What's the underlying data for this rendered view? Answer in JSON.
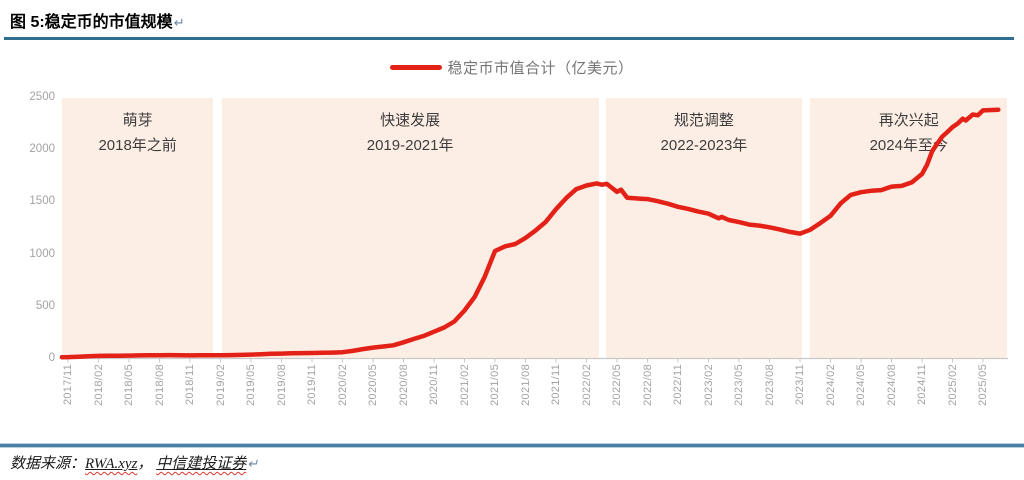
{
  "header": {
    "title": "图 5:稳定币的市值规模",
    "return_mark": "↵"
  },
  "legend": {
    "label": "稳定币市值合计（亿美元）"
  },
  "colors": {
    "line": "#e32117",
    "band": "#fdeee5",
    "divider_top": "#2f6e8e",
    "divider_bottom": "#4a80a4",
    "axis": "#c9c9c9",
    "axis_text": "#a3a3a3",
    "phase_text": "#3d3d3d"
  },
  "source": {
    "label": "数据来源：",
    "link1": "RWA.xyz",
    "separator": "， ",
    "link2": "中信建投证券",
    "return_mark": "↵"
  },
  "chart_data": {
    "type": "line",
    "title": "稳定币的市值规模",
    "legend_entries": [
      "稳定币市值合计（亿美元）"
    ],
    "ylabel": "亿美元",
    "ylim": [
      0,
      2500
    ],
    "y_ticks": [
      0,
      500,
      1000,
      1500,
      2000,
      2500
    ],
    "grid": false,
    "x_unit": "months since 2017/11",
    "x_tick_step_months": 3,
    "x_tick_labels": [
      "2017/11",
      "2018/02",
      "2018/05",
      "2018/08",
      "2018/11",
      "2019/02",
      "2019/05",
      "2019/08",
      "2019/11",
      "2020/02",
      "2020/05",
      "2020/08",
      "2020/11",
      "2021/02",
      "2021/05",
      "2021/08",
      "2021/11",
      "2022/02",
      "2022/05",
      "2022/08",
      "2022/11",
      "2023/02",
      "2023/05",
      "2023/08",
      "2023/11",
      "2024/02",
      "2024/05",
      "2024/08",
      "2024/11",
      "2025/02",
      "2025/05"
    ],
    "phases": [
      {
        "label": "萌芽",
        "period": "2018年之前",
        "m_start": -0.6,
        "m_end": 14.3
      },
      {
        "label": "快速发展",
        "period": "2019-2021年",
        "m_start": 15.1,
        "m_end": 52.2
      },
      {
        "label": "规范调整",
        "period": "2022-2023年",
        "m_start": 52.9,
        "m_end": 72.2
      },
      {
        "label": "再次兴起",
        "period": "2024年至今",
        "m_start": 73.0,
        "m_end": 92.4
      }
    ],
    "series": [
      {
        "name": "稳定币市值合计（亿美元）",
        "points": [
          [
            -0.6,
            8
          ],
          [
            0,
            9
          ],
          [
            1,
            12
          ],
          [
            2,
            16
          ],
          [
            3,
            20
          ],
          [
            4,
            21
          ],
          [
            5,
            21
          ],
          [
            6,
            23
          ],
          [
            7,
            25
          ],
          [
            8,
            26
          ],
          [
            9,
            27
          ],
          [
            10,
            28
          ],
          [
            11,
            27
          ],
          [
            12,
            25
          ],
          [
            13,
            26
          ],
          [
            14,
            26
          ],
          [
            15,
            27
          ],
          [
            16,
            28
          ],
          [
            17,
            30
          ],
          [
            18,
            33
          ],
          [
            19,
            36
          ],
          [
            20,
            40
          ],
          [
            21,
            42
          ],
          [
            22,
            45
          ],
          [
            23,
            47
          ],
          [
            24,
            48
          ],
          [
            25,
            50
          ],
          [
            26,
            52
          ],
          [
            27,
            56
          ],
          [
            28,
            68
          ],
          [
            29,
            85
          ],
          [
            30,
            100
          ],
          [
            31,
            110
          ],
          [
            32,
            122
          ],
          [
            33,
            150
          ],
          [
            34,
            182
          ],
          [
            35,
            212
          ],
          [
            36,
            252
          ],
          [
            37,
            292
          ],
          [
            38,
            350
          ],
          [
            39,
            455
          ],
          [
            40,
            585
          ],
          [
            41,
            780
          ],
          [
            42,
            1025
          ],
          [
            43,
            1070
          ],
          [
            44,
            1092
          ],
          [
            45,
            1150
          ],
          [
            46,
            1222
          ],
          [
            47,
            1305
          ],
          [
            48,
            1425
          ],
          [
            49,
            1532
          ],
          [
            50,
            1618
          ],
          [
            51,
            1652
          ],
          [
            52,
            1672
          ],
          [
            52.5,
            1660
          ],
          [
            53,
            1668
          ],
          [
            54,
            1592
          ],
          [
            54.4,
            1612
          ],
          [
            55,
            1535
          ],
          [
            56,
            1528
          ],
          [
            57,
            1522
          ],
          [
            58,
            1502
          ],
          [
            59,
            1478
          ],
          [
            60,
            1448
          ],
          [
            61,
            1428
          ],
          [
            62,
            1402
          ],
          [
            63,
            1382
          ],
          [
            64,
            1338
          ],
          [
            64.3,
            1352
          ],
          [
            65,
            1322
          ],
          [
            66,
            1302
          ],
          [
            67,
            1278
          ],
          [
            68,
            1268
          ],
          [
            69,
            1252
          ],
          [
            70,
            1232
          ],
          [
            71,
            1208
          ],
          [
            72,
            1192
          ],
          [
            73,
            1228
          ],
          [
            74,
            1292
          ],
          [
            75,
            1362
          ],
          [
            76,
            1482
          ],
          [
            77,
            1562
          ],
          [
            78,
            1588
          ],
          [
            79,
            1602
          ],
          [
            80,
            1608
          ],
          [
            81,
            1642
          ],
          [
            82,
            1648
          ],
          [
            83,
            1682
          ],
          [
            84,
            1762
          ],
          [
            84.5,
            1852
          ],
          [
            85,
            1982
          ],
          [
            85.5,
            2055
          ],
          [
            86,
            2122
          ],
          [
            86.5,
            2165
          ],
          [
            87,
            2212
          ],
          [
            87.5,
            2245
          ],
          [
            88,
            2292
          ],
          [
            88.3,
            2275
          ],
          [
            89,
            2332
          ],
          [
            89.5,
            2325
          ],
          [
            90,
            2372
          ],
          [
            91.5,
            2378
          ]
        ]
      }
    ]
  }
}
